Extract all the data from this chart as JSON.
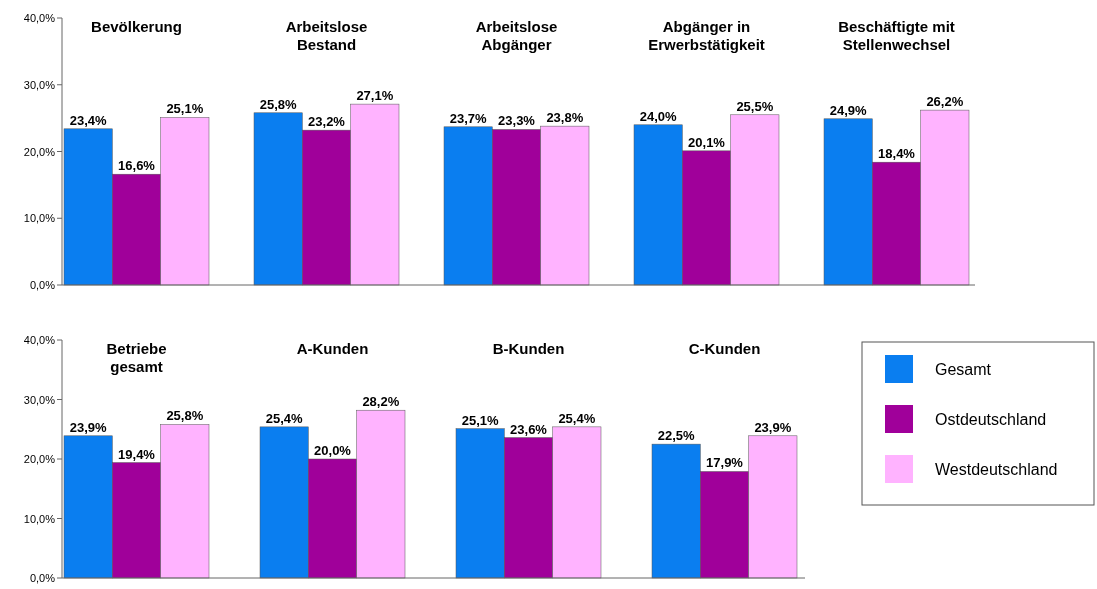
{
  "chart_data": [
    {
      "type": "bar",
      "categories": [
        "Bevölkerung",
        "Arbeitslose\nBestand",
        "Arbeitslose\nAbgänger",
        "Abgänger in\nErwerbstätigkeit",
        "Beschäftigte mit\nStellenwechsel"
      ],
      "series": [
        {
          "color": "#0a7ef0",
          "values": [
            23.4,
            25.8,
            23.7,
            24.0,
            24.9
          ],
          "value_labels": [
            "23,4%",
            "25,8%",
            "23,7%",
            "24,0%",
            "24,9%"
          ]
        },
        {
          "color": "#a0009a",
          "values": [
            16.6,
            23.2,
            23.3,
            20.1,
            18.4
          ],
          "value_labels": [
            "16,6%",
            "23,2%",
            "23,3%",
            "20,1%",
            "18,4%"
          ]
        },
        {
          "color": "#ffb3ff",
          "values": [
            25.1,
            27.1,
            23.8,
            25.5,
            26.2
          ],
          "value_labels": [
            "25,1%",
            "27,1%",
            "23,8%",
            "25,5%",
            "26,2%"
          ]
        }
      ],
      "ylim": [
        0,
        40
      ],
      "yticks": [
        {
          "value": 0,
          "label": "0,0%"
        },
        {
          "value": 10,
          "label": "10,0%"
        },
        {
          "value": 20,
          "label": "20,0%"
        },
        {
          "value": 30,
          "label": "30,0%"
        },
        {
          "value": 40,
          "label": "40,0%"
        }
      ],
      "grid": false,
      "legend": false
    },
    {
      "type": "bar",
      "categories": [
        "Betriebe\ngesamt",
        "A-Kunden",
        "B-Kunden",
        "C-Kunden"
      ],
      "series": [
        {
          "name": "Gesamt",
          "color": "#0a7ef0",
          "values": [
            23.9,
            25.4,
            25.1,
            22.5
          ],
          "value_labels": [
            "23,9%",
            "25,4%",
            "25,1%",
            "22,5%"
          ]
        },
        {
          "name": "Ostdeutschland",
          "color": "#a0009a",
          "values": [
            19.4,
            20.0,
            23.6,
            17.9
          ],
          "value_labels": [
            "19,4%",
            "20,0%",
            "23,6%",
            "17,9%"
          ]
        },
        {
          "name": "Westdeutschland",
          "color": "#ffb3ff",
          "values": [
            25.8,
            28.2,
            25.4,
            23.9
          ],
          "value_labels": [
            "25,8%",
            "28,2%",
            "25,4%",
            "23,9%"
          ]
        }
      ],
      "ylim": [
        0,
        40
      ],
      "yticks": [
        {
          "value": 0,
          "label": "0,0%"
        },
        {
          "value": 10,
          "label": "10,0%"
        },
        {
          "value": 20,
          "label": "20,0%"
        },
        {
          "value": 30,
          "label": "30,0%"
        },
        {
          "value": 40,
          "label": "40,0%"
        }
      ],
      "grid": false,
      "legend": "right"
    }
  ]
}
